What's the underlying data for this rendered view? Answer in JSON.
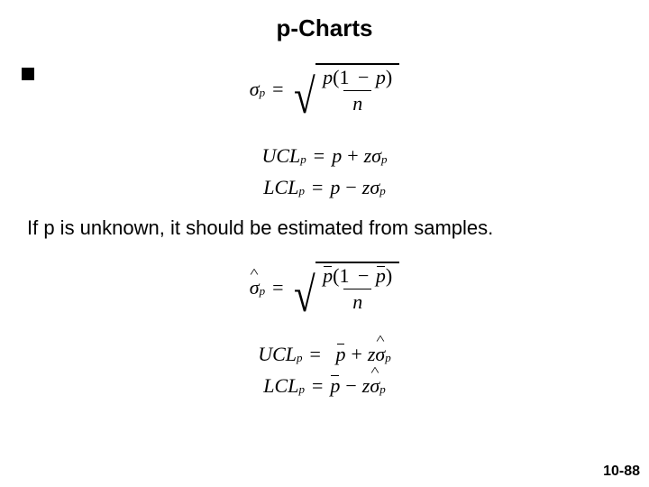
{
  "title": "p-Charts",
  "note_text": "If p is unknown, it should be estimated from samples.",
  "page_number": "10-88",
  "eq": {
    "sigma": "σ",
    "p": "p",
    "n": "n",
    "z": "z",
    "ucl": "UCL",
    "lcl": "LCL",
    "equals": "=",
    "plus": "+",
    "minus": "−",
    "one": "1",
    "open": "(",
    "close": ")",
    "pbar": "p̄",
    "pbar_plain": "p"
  },
  "style": {
    "bg": "#ffffff",
    "text": "#000000",
    "title_fontsize": 26,
    "body_fontsize": 22,
    "pagenum_fontsize": 16
  }
}
